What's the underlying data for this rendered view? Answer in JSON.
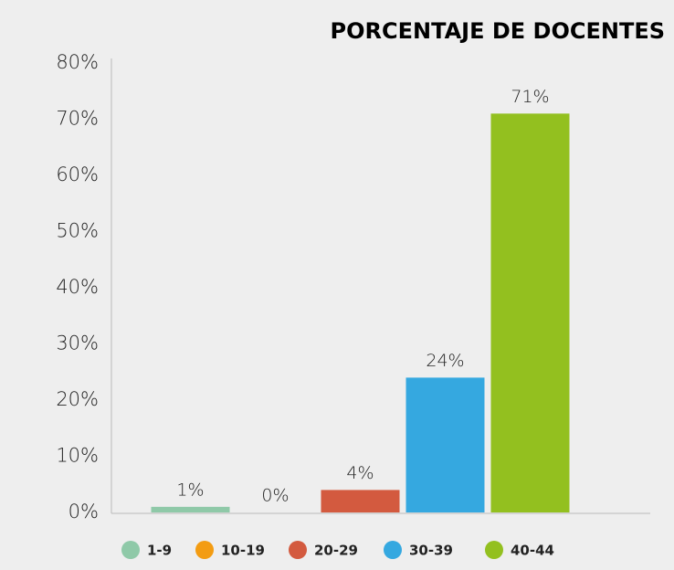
{
  "chart_data": {
    "type": "bar",
    "title": "PORCENTAJE DE DOCENTES",
    "categories": [
      "1-9",
      "10-19",
      "20-29",
      "30-39",
      "40-44"
    ],
    "values": [
      1,
      0,
      4,
      24,
      71
    ],
    "value_labels": [
      "1%",
      "0%",
      "4%",
      "24%",
      "71%"
    ],
    "colors": [
      "#8fc9a8",
      "#f39c12",
      "#d35a3f",
      "#35a8e0",
      "#93c01f"
    ],
    "ylim": [
      0,
      80
    ],
    "yticks": [
      {
        "value": 0,
        "label": "0%"
      },
      {
        "value": 10,
        "label": "10%"
      },
      {
        "value": 20,
        "label": "20%"
      },
      {
        "value": 30,
        "label": "30%"
      },
      {
        "value": 40,
        "label": "40%"
      },
      {
        "value": 50,
        "label": "50%"
      },
      {
        "value": 60,
        "label": "60%"
      },
      {
        "value": 70,
        "label": "70%"
      },
      {
        "value": 80,
        "label": "80%"
      }
    ],
    "grid": false,
    "legend": "bottom"
  }
}
